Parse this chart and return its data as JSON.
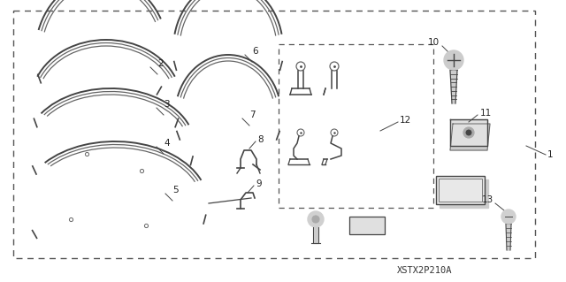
{
  "bg_color": "#ffffff",
  "diagram_code": "XSTX2P210A",
  "line_color": "#666666",
  "dark_color": "#444444",
  "light_color": "#aaaaaa"
}
